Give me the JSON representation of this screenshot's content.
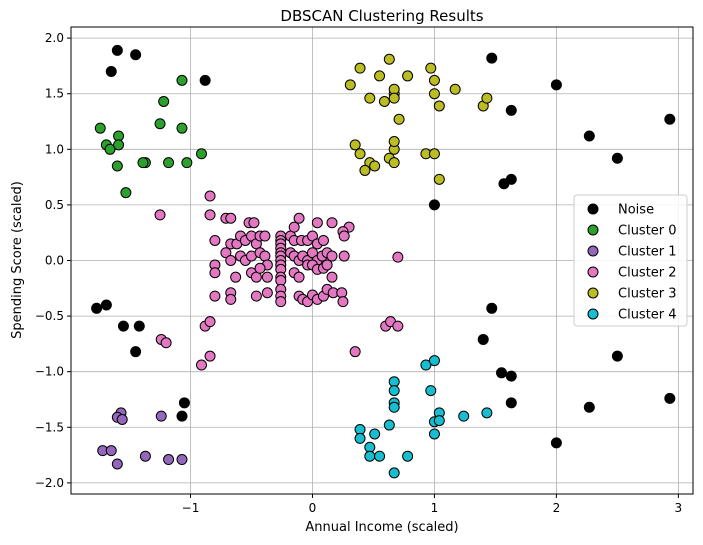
{
  "chart_data": {
    "type": "scatter",
    "title": "DBSCAN Clustering Results",
    "xlabel": "Annual Income (scaled)",
    "ylabel": "Spending Score (scaled)",
    "xlim": [
      -1.98,
      3.12
    ],
    "ylim": [
      -2.1,
      2.1
    ],
    "xticks": [
      -1,
      0,
      1,
      2,
      3
    ],
    "xtick_labels": [
      "−1",
      "0",
      "1",
      "2",
      "3"
    ],
    "yticks": [
      -2.0,
      -1.5,
      -1.0,
      -0.5,
      0.0,
      0.5,
      1.0,
      1.5,
      2.0
    ],
    "ytick_labels": [
      "−2.0",
      "−1.5",
      "−1.0",
      "−0.5",
      "0.0",
      "0.5",
      "1.0",
      "1.5",
      "2.0"
    ],
    "grid": true,
    "legend_position": "center-right",
    "series": [
      {
        "name": "Noise",
        "color": "#000000",
        "points": [
          [
            -1.6,
            1.89
          ],
          [
            -1.45,
            1.85
          ],
          [
            -1.65,
            1.7
          ],
          [
            -0.88,
            1.62
          ],
          [
            1.47,
            1.82
          ],
          [
            1.63,
            1.35
          ],
          [
            2.0,
            1.58
          ],
          [
            2.27,
            1.12
          ],
          [
            2.5,
            0.92
          ],
          [
            2.93,
            1.27
          ],
          [
            1.57,
            0.69
          ],
          [
            1.63,
            0.73
          ],
          [
            1.0,
            0.5
          ],
          [
            -1.77,
            -0.43
          ],
          [
            -1.69,
            -0.4
          ],
          [
            -1.55,
            -0.59
          ],
          [
            -1.42,
            -0.59
          ],
          [
            -1.45,
            -0.82
          ],
          [
            1.47,
            -0.43
          ],
          [
            1.4,
            -0.71
          ],
          [
            1.55,
            -1.01
          ],
          [
            1.63,
            -1.04
          ],
          [
            1.63,
            -1.28
          ],
          [
            2.5,
            -0.86
          ],
          [
            2.93,
            -1.24
          ],
          [
            2.27,
            -1.32
          ],
          [
            2.0,
            -1.64
          ],
          [
            -1.05,
            -1.28
          ],
          [
            -1.07,
            -1.4
          ]
        ]
      },
      {
        "name": "Cluster 0",
        "color": "#2ca02c",
        "points": [
          [
            -1.07,
            1.62
          ],
          [
            -1.22,
            1.43
          ],
          [
            -1.25,
            1.23
          ],
          [
            -1.07,
            1.19
          ],
          [
            -1.74,
            1.19
          ],
          [
            -1.69,
            1.04
          ],
          [
            -1.66,
            1.0
          ],
          [
            -1.59,
            1.12
          ],
          [
            -1.59,
            1.04
          ],
          [
            -1.37,
            0.88
          ],
          [
            -1.39,
            0.88
          ],
          [
            -1.6,
            0.85
          ],
          [
            -1.18,
            0.88
          ],
          [
            -1.03,
            0.88
          ],
          [
            -0.91,
            0.96
          ],
          [
            -1.53,
            0.61
          ]
        ]
      },
      {
        "name": "Cluster 1",
        "color": "#9467bd",
        "points": [
          [
            -1.57,
            -1.37
          ],
          [
            -1.6,
            -1.41
          ],
          [
            -1.56,
            -1.43
          ],
          [
            -1.24,
            -1.4
          ],
          [
            -1.72,
            -1.71
          ],
          [
            -1.65,
            -1.71
          ],
          [
            -1.6,
            -1.83
          ],
          [
            -1.37,
            -1.76
          ],
          [
            -1.18,
            -1.79
          ],
          [
            -1.07,
            -1.79
          ]
        ]
      },
      {
        "name": "Cluster 2",
        "color": "#e377c2",
        "points": [
          [
            -1.25,
            0.41
          ],
          [
            -0.84,
            0.58
          ],
          [
            -0.84,
            0.41
          ],
          [
            -0.71,
            0.38
          ],
          [
            -0.67,
            0.38
          ],
          [
            -0.52,
            0.34
          ],
          [
            -0.48,
            0.34
          ],
          [
            -0.11,
            0.38
          ],
          [
            0.04,
            0.34
          ],
          [
            0.16,
            0.34
          ],
          [
            0.3,
            0.3
          ],
          [
            0.25,
            0.26
          ],
          [
            0.26,
            0.22
          ],
          [
            -0.8,
            0.18
          ],
          [
            -0.67,
            0.15
          ],
          [
            -0.62,
            0.15
          ],
          [
            -0.59,
            0.22
          ],
          [
            -0.55,
            0.18
          ],
          [
            -0.5,
            0.22
          ],
          [
            -0.46,
            0.15
          ],
          [
            -0.43,
            0.22
          ],
          [
            -0.39,
            0.22
          ],
          [
            -0.26,
            0.22
          ],
          [
            -0.26,
            0.18
          ],
          [
            -0.26,
            0.15
          ],
          [
            -0.26,
            0.11
          ],
          [
            -0.18,
            0.22
          ],
          [
            -0.15,
            0.3
          ],
          [
            -0.15,
            0.18
          ],
          [
            -0.09,
            0.18
          ],
          [
            -0.04,
            0.18
          ],
          [
            0.0,
            0.22
          ],
          [
            0.04,
            0.15
          ],
          [
            0.09,
            0.18
          ],
          [
            -0.71,
            0.07
          ],
          [
            -0.59,
            0.04
          ],
          [
            -0.55,
            0.0
          ],
          [
            -0.5,
            0.04
          ],
          [
            -0.43,
            0.07
          ],
          [
            -0.39,
            0.04
          ],
          [
            -0.37,
            -0.04
          ],
          [
            -0.26,
            0.07
          ],
          [
            -0.26,
            0.04
          ],
          [
            -0.26,
            0.0
          ],
          [
            -0.18,
            0.07
          ],
          [
            -0.15,
            0.04
          ],
          [
            -0.11,
            0.0
          ],
          [
            -0.08,
            0.04
          ],
          [
            -0.04,
            0.0
          ],
          [
            0.0,
            0.07
          ],
          [
            0.04,
            0.0
          ],
          [
            0.08,
            0.04
          ],
          [
            0.12,
            0.07
          ],
          [
            0.16,
            0.04
          ],
          [
            0.26,
            0.04
          ],
          [
            -0.67,
            0.0
          ],
          [
            -0.8,
            -0.04
          ],
          [
            -0.8,
            -0.11
          ],
          [
            -0.63,
            -0.15
          ],
          [
            -0.5,
            -0.11
          ],
          [
            -0.46,
            -0.15
          ],
          [
            -0.43,
            -0.07
          ],
          [
            -0.37,
            -0.15
          ],
          [
            -0.26,
            -0.04
          ],
          [
            -0.26,
            -0.08
          ],
          [
            -0.26,
            -0.15
          ],
          [
            -0.26,
            -0.18
          ],
          [
            -0.15,
            -0.11
          ],
          [
            -0.11,
            -0.15
          ],
          [
            -0.04,
            -0.04
          ],
          [
            0.0,
            -0.04
          ],
          [
            0.04,
            -0.08
          ],
          [
            0.09,
            -0.07
          ],
          [
            0.12,
            -0.04
          ],
          [
            0.16,
            -0.15
          ],
          [
            -0.8,
            -0.32
          ],
          [
            -0.67,
            -0.29
          ],
          [
            -0.67,
            -0.35
          ],
          [
            -0.46,
            -0.32
          ],
          [
            -0.37,
            -0.29
          ],
          [
            -0.26,
            -0.26
          ],
          [
            -0.26,
            -0.32
          ],
          [
            -0.26,
            -0.37
          ],
          [
            -0.11,
            -0.32
          ],
          [
            -0.08,
            -0.35
          ],
          [
            -0.04,
            -0.37
          ],
          [
            0.0,
            -0.31
          ],
          [
            0.04,
            -0.35
          ],
          [
            0.09,
            -0.32
          ],
          [
            0.12,
            -0.26
          ],
          [
            0.17,
            -0.29
          ],
          [
            0.24,
            -0.29
          ],
          [
            0.25,
            -0.37
          ],
          [
            -1.24,
            -0.71
          ],
          [
            -1.2,
            -0.74
          ],
          [
            -0.88,
            -0.59
          ],
          [
            -0.84,
            -0.55
          ],
          [
            -0.91,
            -0.94
          ],
          [
            -0.84,
            -0.86
          ],
          [
            0.6,
            -0.59
          ],
          [
            0.64,
            -0.55
          ],
          [
            0.7,
            -0.59
          ],
          [
            0.35,
            -0.82
          ],
          [
            0.7,
            0.03
          ]
        ]
      },
      {
        "name": "Cluster 3",
        "color": "#bcbd22",
        "points": [
          [
            0.39,
            1.73
          ],
          [
            0.55,
            1.66
          ],
          [
            0.63,
            1.81
          ],
          [
            0.67,
            1.5
          ],
          [
            0.67,
            1.54
          ],
          [
            0.78,
            1.66
          ],
          [
            0.97,
            1.73
          ],
          [
            1.0,
            1.62
          ],
          [
            1.0,
            1.5
          ],
          [
            1.17,
            1.54
          ],
          [
            1.04,
            1.39
          ],
          [
            1.4,
            1.39
          ],
          [
            1.43,
            1.46
          ],
          [
            0.31,
            1.58
          ],
          [
            0.47,
            1.46
          ],
          [
            0.59,
            1.43
          ],
          [
            0.67,
            1.46
          ],
          [
            0.71,
            1.27
          ],
          [
            0.35,
            1.04
          ],
          [
            0.39,
            0.96
          ],
          [
            0.47,
            0.88
          ],
          [
            0.43,
            0.81
          ],
          [
            0.51,
            0.85
          ],
          [
            0.63,
            0.92
          ],
          [
            0.67,
            0.88
          ],
          [
            0.67,
            1.0
          ],
          [
            0.67,
            1.07
          ],
          [
            0.93,
            0.96
          ],
          [
            1.0,
            0.96
          ],
          [
            1.04,
            0.73
          ]
        ]
      },
      {
        "name": "Cluster 4",
        "color": "#17becf",
        "points": [
          [
            0.67,
            -1.09
          ],
          [
            0.67,
            -1.17
          ],
          [
            0.67,
            -1.28
          ],
          [
            0.67,
            -1.32
          ],
          [
            0.93,
            -0.94
          ],
          [
            1.0,
            -0.9
          ],
          [
            0.97,
            -1.17
          ],
          [
            1.0,
            -1.45
          ],
          [
            1.04,
            -1.37
          ],
          [
            1.04,
            -1.44
          ],
          [
            1.0,
            -1.56
          ],
          [
            1.43,
            -1.37
          ],
          [
            1.24,
            -1.4
          ],
          [
            0.39,
            -1.52
          ],
          [
            0.39,
            -1.6
          ],
          [
            0.51,
            -1.56
          ],
          [
            0.63,
            -1.48
          ],
          [
            0.47,
            -1.68
          ],
          [
            0.47,
            -1.76
          ],
          [
            0.55,
            -1.76
          ],
          [
            0.67,
            -1.91
          ],
          [
            0.78,
            -1.76
          ]
        ]
      }
    ]
  }
}
